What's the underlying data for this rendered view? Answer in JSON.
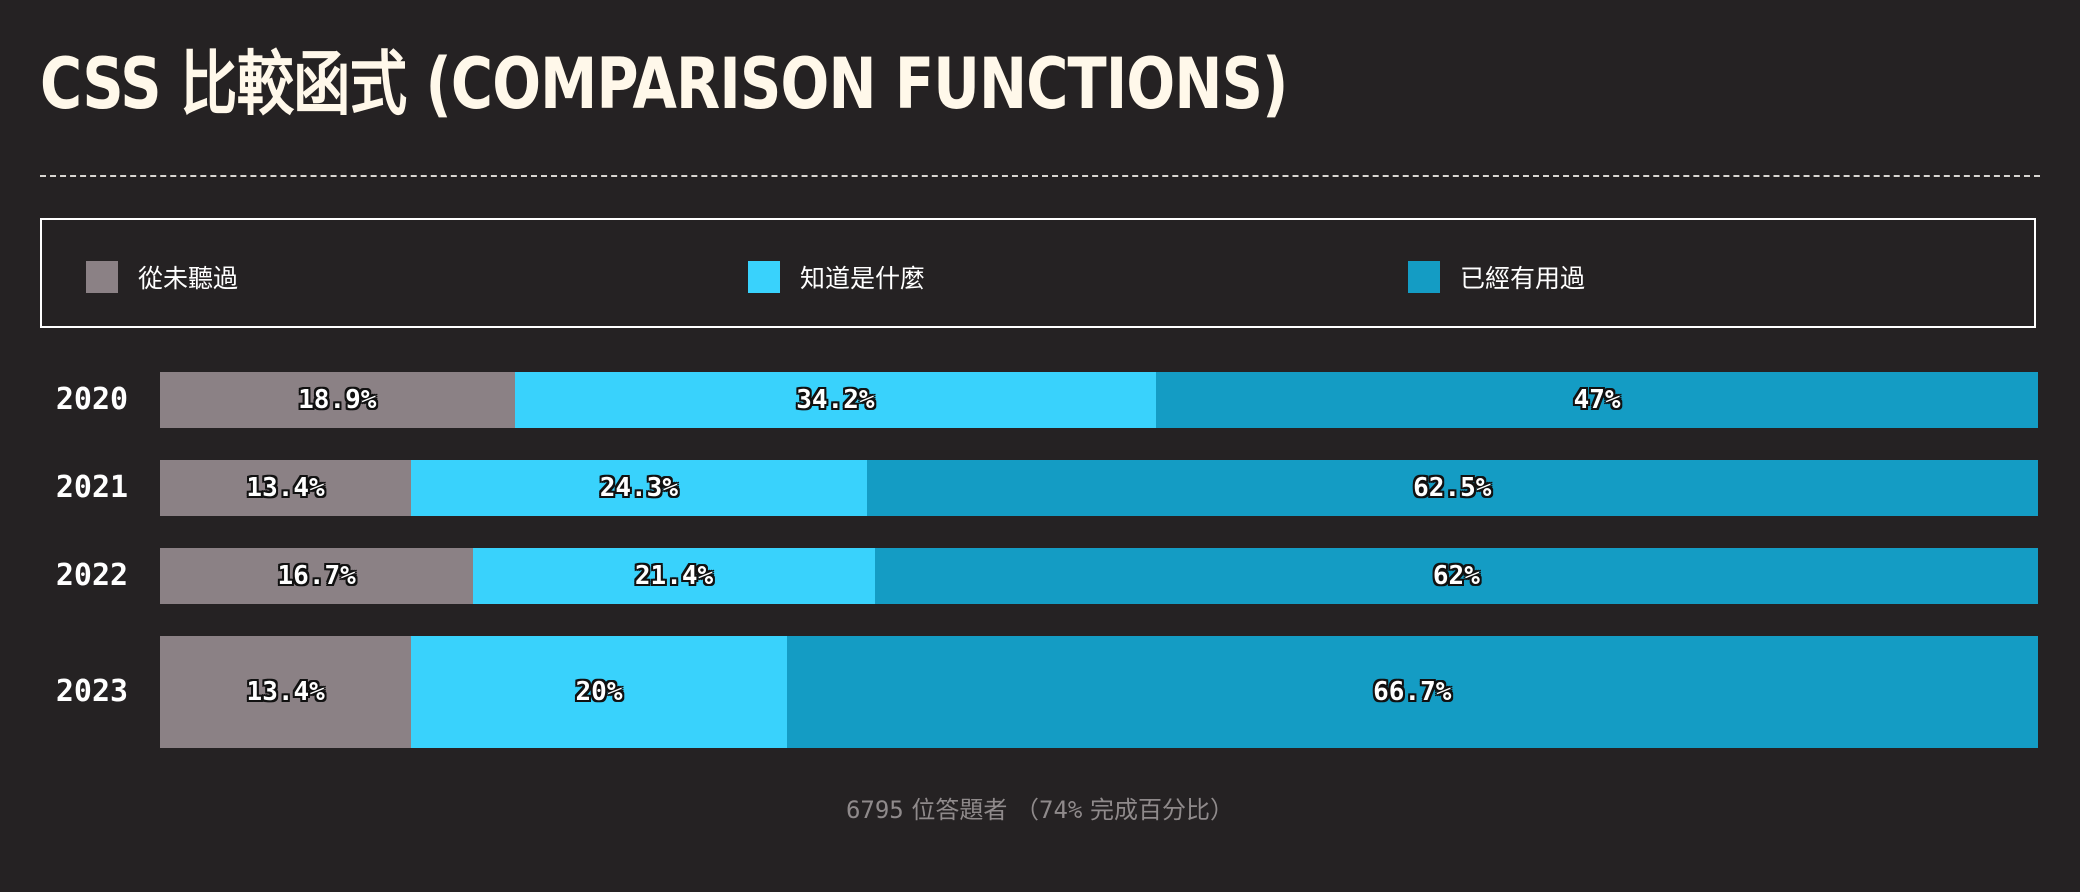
{
  "title": "CSS 比較函式 (COMPARISON FUNCTIONS)",
  "legend": [
    {
      "label": "從未聽過",
      "color": "#8b8185"
    },
    {
      "label": "知道是什麼",
      "color": "#39d2fc"
    },
    {
      "label": "已經有用過",
      "color": "#149cc4"
    }
  ],
  "footer": {
    "count": "6795",
    "respondents": "位答題者",
    "completion_open": "（",
    "completion_pct": "74%",
    "completion_text": "完成百分比）"
  },
  "chart_data": {
    "type": "bar",
    "orientation": "horizontal",
    "stacked": true,
    "categories": [
      "2020",
      "2021",
      "2022",
      "2023"
    ],
    "series": [
      {
        "name": "從未聽過",
        "values": [
          18.9,
          13.4,
          16.7,
          13.4
        ],
        "labels": [
          "18.9%",
          "13.4%",
          "16.7%",
          "13.4%"
        ],
        "color": "#8b8185"
      },
      {
        "name": "知道是什麼",
        "values": [
          34.2,
          24.3,
          21.4,
          20
        ],
        "labels": [
          "34.2%",
          "24.3%",
          "21.4%",
          "20%"
        ],
        "color": "#39d2fc"
      },
      {
        "name": "已經有用過",
        "values": [
          47,
          62.5,
          62,
          66.7
        ],
        "labels": [
          "47%",
          "62.5%",
          "62%",
          "66.7%"
        ],
        "color": "#149cc4"
      }
    ],
    "legend_position": "top",
    "grid": false
  }
}
